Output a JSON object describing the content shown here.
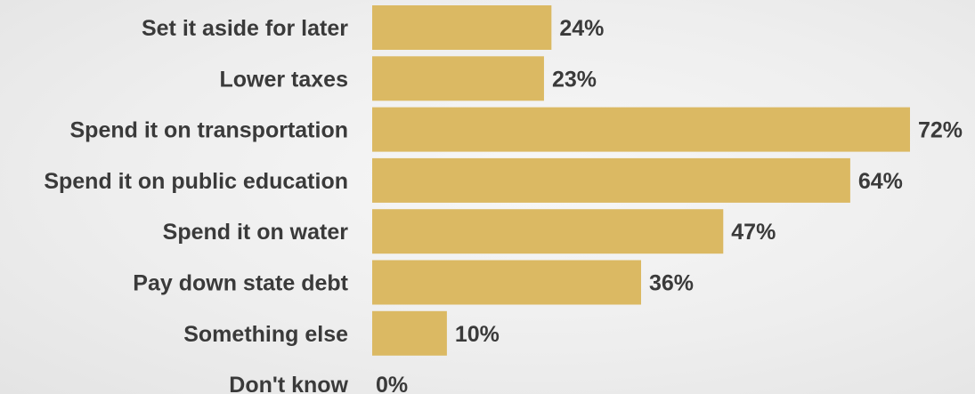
{
  "chart_data": {
    "type": "bar",
    "orientation": "horizontal",
    "categories": [
      "Set it aside for later",
      "Lower taxes",
      "Spend it on transportation",
      "Spend it on public education",
      "Spend it on water",
      "Pay down state debt",
      "Something else",
      "Don't know"
    ],
    "values": [
      24,
      23,
      72,
      64,
      47,
      36,
      10,
      0
    ],
    "value_labels": [
      "24%",
      "23%",
      "72%",
      "64%",
      "47%",
      "36%",
      "10%",
      "0%"
    ],
    "xlim": [
      0,
      72
    ],
    "grid": false,
    "legend": "none",
    "bar_color": "#dbb963",
    "text_color": "#3a3a3a"
  }
}
